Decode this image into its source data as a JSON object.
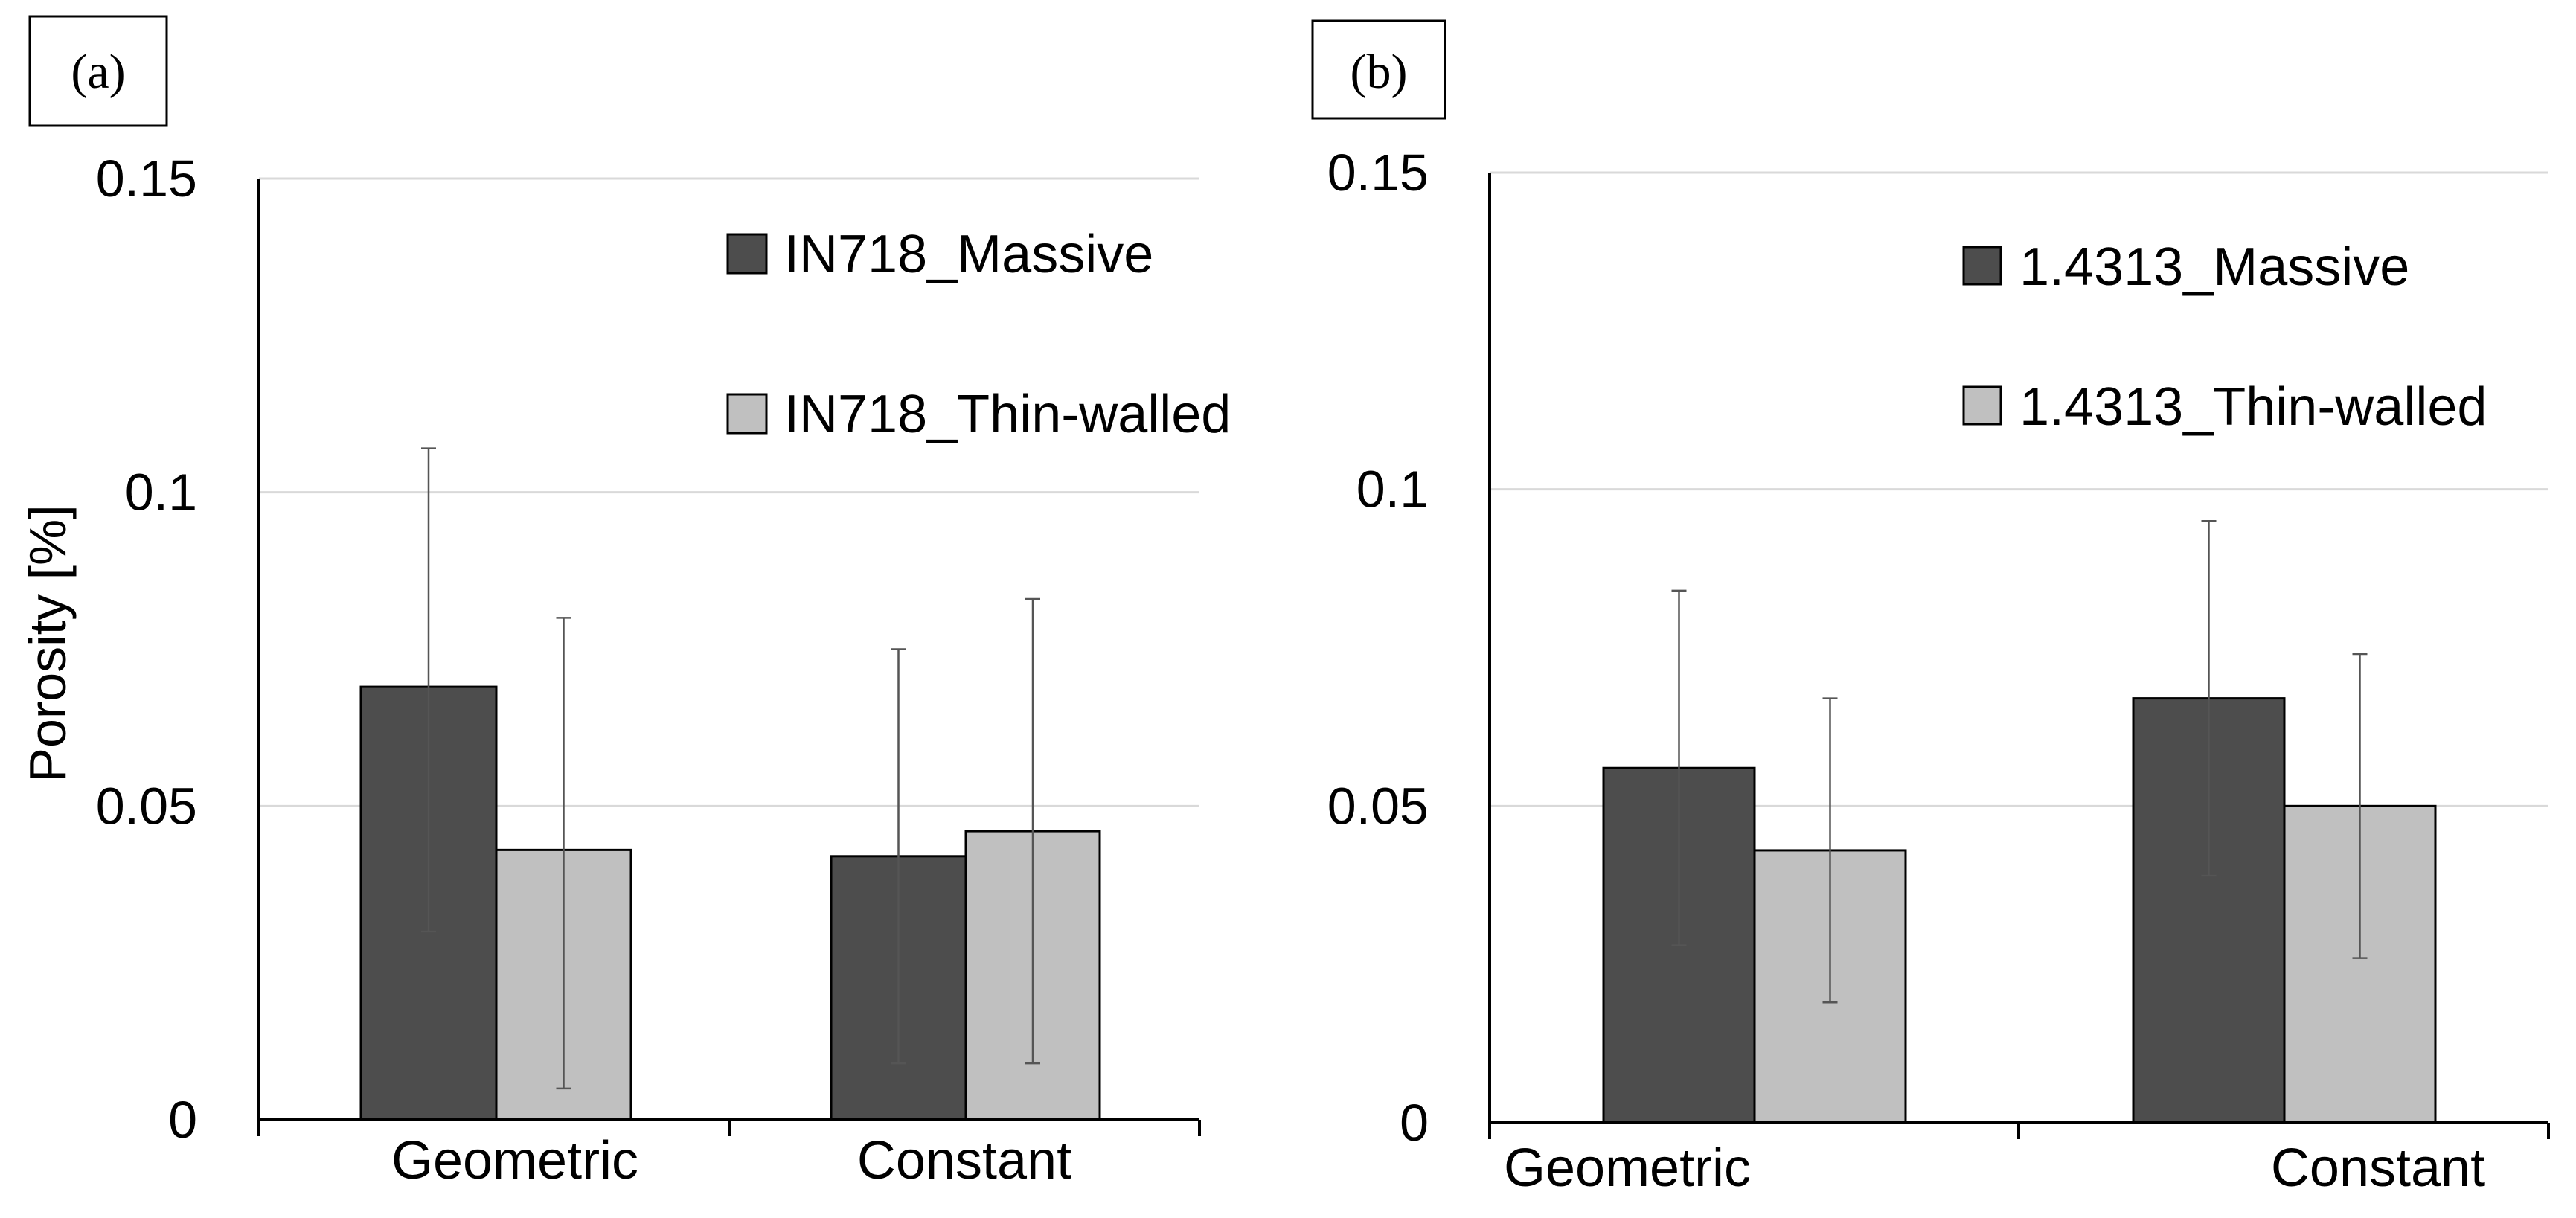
{
  "chart_data": [
    {
      "type": "bar",
      "panel_label": "(a)",
      "ylabel": "Porosity [%]",
      "xlabel": "",
      "ylim": [
        0,
        0.15
      ],
      "yticks": [
        0,
        0.05,
        0.1,
        0.15
      ],
      "ytick_labels": [
        "0",
        "0.05",
        "0.1",
        "0.15"
      ],
      "grid": true,
      "legend_position": "top-right",
      "categories": [
        "Geometric",
        "Constant"
      ],
      "series": [
        {
          "name": "IN718_Massive",
          "color": "#4d4d4d",
          "values": [
            0.069,
            0.042
          ],
          "err_low": [
            0.03,
            0.009
          ],
          "err_high": [
            0.107,
            0.075
          ]
        },
        {
          "name": "IN718_Thin-walled",
          "color": "#c0c0c0",
          "values": [
            0.043,
            0.046
          ],
          "err_low": [
            0.005,
            0.009
          ],
          "err_high": [
            0.08,
            0.083
          ]
        }
      ]
    },
    {
      "type": "bar",
      "panel_label": "(b)",
      "ylabel": "",
      "xlabel": "",
      "ylim": [
        0,
        0.15
      ],
      "yticks": [
        0,
        0.05,
        0.1,
        0.15
      ],
      "ytick_labels": [
        "0",
        "0.05",
        "0.1",
        "0.15"
      ],
      "grid": true,
      "legend_position": "top-right",
      "categories": [
        "Geometric",
        "Constant"
      ],
      "series": [
        {
          "name": "1.4313_Massive",
          "color": "#4d4d4d",
          "values": [
            0.056,
            0.067
          ],
          "err_low": [
            0.028,
            0.039
          ],
          "err_high": [
            0.084,
            0.095
          ]
        },
        {
          "name": "1.4313_Thin-walled",
          "color": "#c0c0c0",
          "values": [
            0.043,
            0.05
          ],
          "err_low": [
            0.019,
            0.026
          ],
          "err_high": [
            0.067,
            0.074
          ]
        }
      ]
    }
  ]
}
